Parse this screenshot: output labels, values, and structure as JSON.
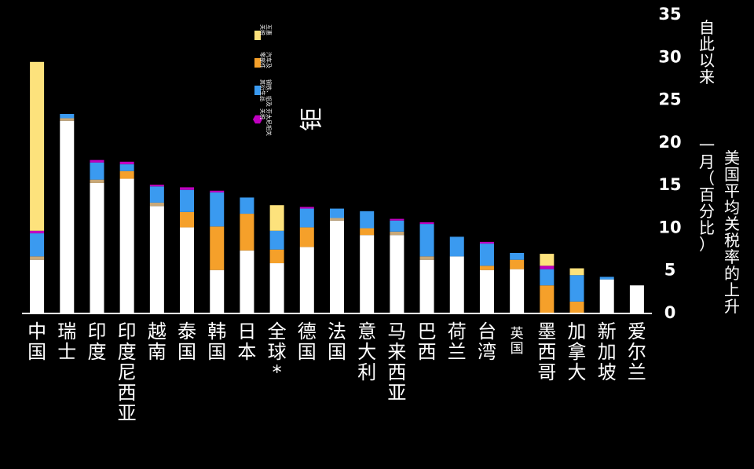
{
  "chart_data": {
    "type": "bar",
    "stacked": true,
    "title": "",
    "xlabel": "",
    "ylabel": [
      "自此以来",
      "一月（百分比）",
      "美国平均关税率的上升"
    ],
    "ylim": [
      0,
      35
    ],
    "yticks": [
      0,
      5,
      10,
      15,
      20,
      25,
      30,
      35
    ],
    "grid": false,
    "legend_position": "top-center",
    "categories": [
      "中国",
      "瑞士",
      "印度",
      "印度尼西亚",
      "越南",
      "泰国",
      "韩国",
      "日本",
      "全球*",
      "德国",
      "法国",
      "意大利",
      "马来西亚",
      "巴西",
      "荷兰",
      "台湾",
      "英国",
      "墨西哥",
      "加拿大",
      "新加坡",
      "爱尔兰"
    ],
    "series": [
      {
        "name": "",
        "color": "#ffffff",
        "values": [
          6.2,
          22.5,
          15.2,
          15.7,
          12.5,
          10.0,
          5.0,
          7.3,
          5.8,
          7.7,
          10.8,
          9.1,
          9.1,
          6.2,
          6.6,
          5.0,
          5.1,
          0.0,
          0.0,
          3.9,
          3.2
        ]
      },
      {
        "name": "",
        "color": "#c8a878",
        "values": [
          0.4,
          0.3,
          0.4,
          0.0,
          0.4,
          0.0,
          0.0,
          0.0,
          0.0,
          0.0,
          0.3,
          0.0,
          0.4,
          0.4,
          0.0,
          0.0,
          0.0,
          0.0,
          0.0,
          0.0,
          0.0
        ]
      },
      {
        "name": "汽车及 零部件",
        "color": "#f5a02a",
        "values": [
          0.0,
          0.0,
          0.0,
          0.9,
          0.0,
          1.8,
          5.1,
          4.3,
          1.6,
          2.3,
          0.0,
          0.8,
          0.0,
          0.0,
          0.0,
          0.5,
          1.1,
          3.2,
          1.3,
          0.0,
          0.0
        ]
      },
      {
        "name": "钢铁、铝及 其衍生品",
        "color": "#3a9af0",
        "values": [
          2.7,
          0.5,
          2.0,
          0.8,
          1.9,
          2.6,
          4.0,
          1.9,
          2.2,
          2.2,
          1.1,
          2.0,
          1.3,
          3.8,
          2.3,
          2.6,
          0.8,
          1.9,
          3.1,
          0.3,
          0.0
        ]
      },
      {
        "name": "芬太尼相关 关税",
        "color": "#c000c0",
        "values": [
          0.3,
          0.0,
          0.3,
          0.3,
          0.2,
          0.3,
          0.2,
          0.0,
          0.0,
          0.2,
          0.0,
          0.0,
          0.2,
          0.2,
          0.0,
          0.2,
          0.0,
          0.4,
          0.0,
          0.0,
          0.0
        ]
      },
      {
        "name": "互惠 关税",
        "color": "#fde27c",
        "values": [
          19.8,
          0.0,
          0.0,
          0.0,
          0.0,
          0.0,
          0.0,
          0.0,
          3.0,
          0.0,
          0.0,
          0.0,
          0.0,
          0.0,
          0.0,
          0.0,
          0.0,
          1.4,
          0.8,
          0.0,
          0.0
        ]
      }
    ]
  },
  "legend_items": [
    {
      "label": "互惠 关税",
      "color": "#fde27c"
    },
    {
      "label": "汽车及 零部件",
      "color": "#f5a02a"
    },
    {
      "label": "钢铁、铝及 其衍生品",
      "color": "#3a9af0"
    },
    {
      "label": "芬太尼相关 关税",
      "color": "#c000c0"
    }
  ],
  "stray_text": "钜"
}
